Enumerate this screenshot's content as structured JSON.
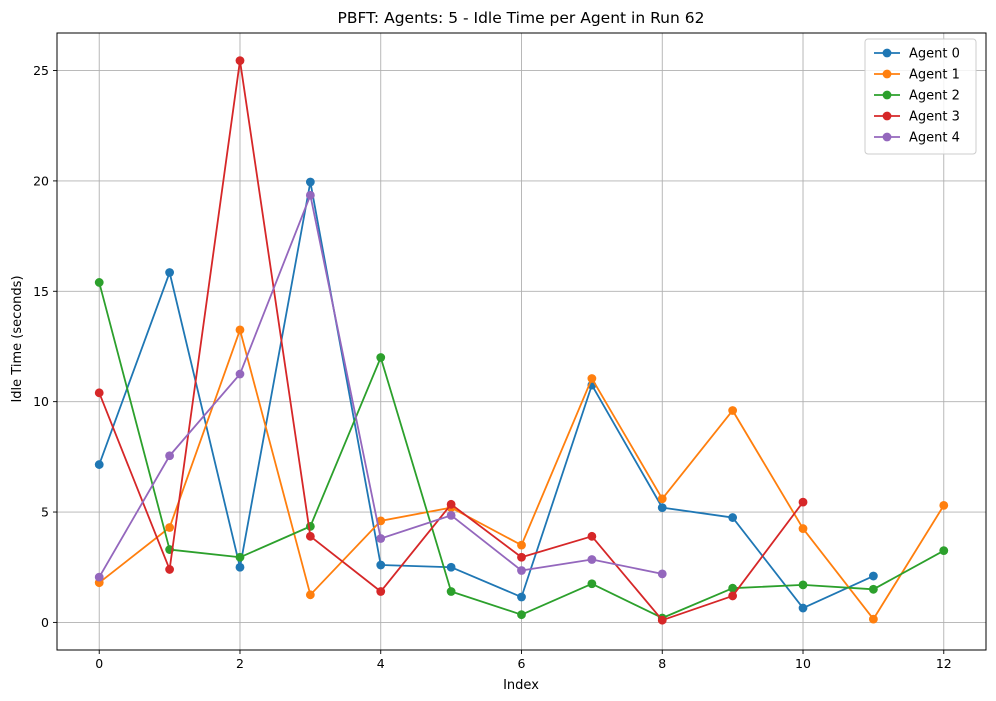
{
  "chart_data": {
    "type": "line",
    "title": "PBFT: Agents: 5 - Idle Time per Agent in Run 62",
    "xlabel": "Index",
    "ylabel": "Idle Time (seconds)",
    "xlim": [
      -0.6,
      12.6
    ],
    "ylim": [
      -1.25,
      26.7
    ],
    "xticks": [
      0,
      2,
      4,
      6,
      8,
      10,
      12
    ],
    "yticks": [
      0,
      5,
      10,
      15,
      20,
      25
    ],
    "grid": true,
    "legend_position": "top-right",
    "marker": "circle",
    "series": [
      {
        "name": "Agent 0",
        "color": "#1f77b4",
        "x": [
          0,
          1,
          2,
          3,
          4,
          5,
          6,
          7,
          8,
          9,
          10,
          11
        ],
        "y": [
          7.15,
          15.85,
          2.5,
          19.95,
          2.6,
          2.5,
          1.15,
          10.75,
          5.2,
          4.75,
          0.65,
          2.1
        ]
      },
      {
        "name": "Agent 1",
        "color": "#ff7f0e",
        "x": [
          0,
          1,
          2,
          3,
          4,
          5,
          6,
          7,
          8,
          9,
          10,
          11,
          12
        ],
        "y": [
          1.8,
          4.3,
          13.25,
          1.25,
          4.6,
          5.2,
          3.5,
          11.05,
          5.6,
          9.6,
          4.25,
          0.15,
          5.3
        ]
      },
      {
        "name": "Agent 2",
        "color": "#2ca02c",
        "x": [
          0,
          1,
          2,
          3,
          4,
          5,
          6,
          7,
          8,
          9,
          10,
          11,
          12
        ],
        "y": [
          15.4,
          3.3,
          2.95,
          4.35,
          12.0,
          1.4,
          0.35,
          1.75,
          0.2,
          1.55,
          1.7,
          1.5,
          3.25
        ]
      },
      {
        "name": "Agent 3",
        "color": "#d62728",
        "x": [
          0,
          1,
          2,
          3,
          4,
          5,
          6,
          7,
          8,
          9,
          10
        ],
        "y": [
          10.4,
          2.4,
          25.45,
          3.9,
          1.4,
          5.35,
          2.95,
          3.9,
          0.1,
          1.2,
          5.45
        ]
      },
      {
        "name": "Agent 4",
        "color": "#9467bd",
        "x": [
          0,
          1,
          2,
          3,
          4,
          5,
          6,
          7,
          8
        ],
        "y": [
          2.05,
          7.55,
          11.25,
          19.35,
          3.8,
          4.85,
          2.35,
          2.85,
          2.2
        ]
      }
    ]
  }
}
